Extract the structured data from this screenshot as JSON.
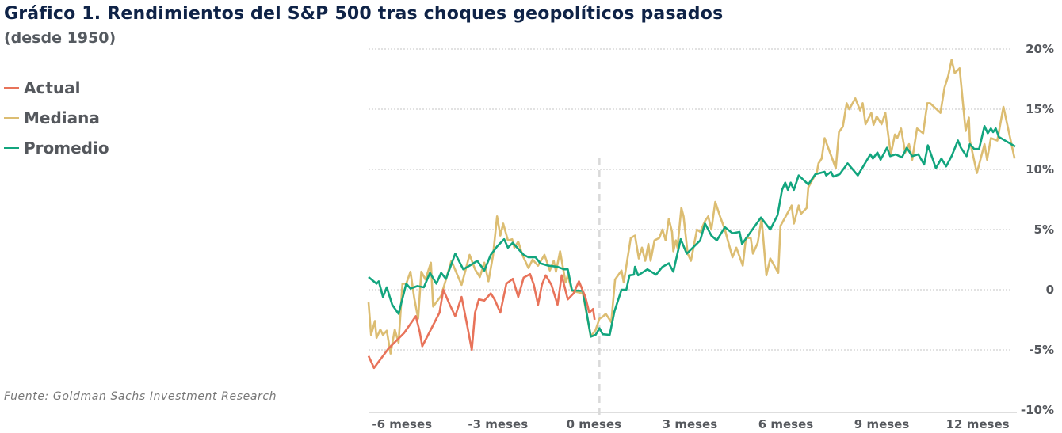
{
  "chart_data": {
    "type": "line",
    "title": "Gráfico 1. Rendimientos del S&P 500 tras choques geopolíticos pasados",
    "subtitle": "(desde 1950)",
    "source": "Fuente: Goldman Sachs Investment Research",
    "xlabel": "",
    "ylabel": "",
    "xlim": [
      -7.17,
      13.1
    ],
    "ylim": [
      -10,
      20
    ],
    "x_ticks": [
      {
        "value": -6,
        "label": "-6 meses"
      },
      {
        "value": -3,
        "label": "-3 meses"
      },
      {
        "value": 0,
        "label": "0 meses"
      },
      {
        "value": 3,
        "label": "3 meses"
      },
      {
        "value": 6,
        "label": "6 meses"
      },
      {
        "value": 9,
        "label": "9 meses"
      },
      {
        "value": 12,
        "label": "12 meses"
      }
    ],
    "y_ticks": [
      {
        "value": 20,
        "label": "20%"
      },
      {
        "value": 15,
        "label": "15%"
      },
      {
        "value": 10,
        "label": "10%"
      },
      {
        "value": 5,
        "label": "5%"
      },
      {
        "value": 0,
        "label": "0"
      },
      {
        "value": -5,
        "label": "-5%"
      },
      {
        "value": -10,
        "label": "-10%"
      }
    ],
    "grid": "horizontal dotted",
    "event_marker_x": 0,
    "legend_position": "top-left",
    "series": [
      {
        "name": "Actual",
        "color": "#e8735a",
        "x": [
          -7.17,
          -7.0,
          -6.55,
          -6.06,
          -5.69,
          -5.57,
          -5.49,
          -5.2,
          -4.95,
          -4.83,
          -4.63,
          -4.46,
          -4.26,
          -4.09,
          -3.94,
          -3.84,
          -3.72,
          -3.55,
          -3.35,
          -3.23,
          -3.05,
          -2.86,
          -2.66,
          -2.49,
          -2.32,
          -2.12,
          -2.0,
          -1.87,
          -1.75,
          -1.63,
          -1.45,
          -1.26,
          -1.13,
          -0.94,
          -0.76,
          -0.59,
          -0.39,
          -0.27,
          -0.15,
          -0.1
        ],
        "y": [
          -5.5,
          -6.5,
          -4.9,
          -3.6,
          -2.2,
          -3.5,
          -4.7,
          -3.2,
          -1.9,
          0,
          -1.25,
          -2.2,
          -0.6,
          -2.9,
          -5.0,
          -1.9,
          -0.8,
          -0.9,
          -0.3,
          -0.8,
          -1.9,
          0.5,
          0.9,
          -0.6,
          1.0,
          1.3,
          0.4,
          -1.25,
          0.4,
          1.2,
          0.4,
          -1.25,
          1.2,
          -0.8,
          -0.3,
          0.7,
          -0.6,
          -1.9,
          -1.6,
          -2.5
        ]
      },
      {
        "name": "Mediana",
        "color": "#dcbd72",
        "x": [
          -7.17,
          -7.09,
          -6.97,
          -6.92,
          -6.8,
          -6.72,
          -6.6,
          -6.48,
          -6.35,
          -6.23,
          -6.11,
          -5.99,
          -5.86,
          -5.74,
          -5.62,
          -5.52,
          -5.39,
          -5.22,
          -5.15,
          -4.9,
          -4.75,
          -4.58,
          -4.26,
          -4.01,
          -3.84,
          -3.69,
          -3.55,
          -3.42,
          -3.28,
          -3.15,
          -3.05,
          -2.96,
          -2.81,
          -2.68,
          -2.61,
          -2.49,
          -2.36,
          -2.17,
          -2.04,
          -1.87,
          -1.67,
          -1.5,
          -1.38,
          -1.31,
          -1.18,
          -1.01,
          -0.94,
          -0.81,
          -0.47,
          -0.22,
          -0.07,
          0.05,
          0.15,
          0.25,
          0.42,
          0.54,
          0.74,
          0.81,
          1.03,
          1.16,
          1.28,
          1.38,
          1.48,
          1.58,
          1.65,
          1.77,
          1.92,
          2.02,
          2.12,
          2.22,
          2.32,
          2.36,
          2.44,
          2.49,
          2.61,
          2.68,
          2.81,
          2.91,
          3.1,
          3.2,
          3.35,
          3.45,
          3.55,
          3.67,
          3.82,
          3.97,
          4.21,
          4.33,
          4.53,
          4.63,
          4.78,
          4.85,
          5.0,
          5.12,
          5.27,
          5.39,
          5.64,
          5.71,
          6.06,
          6.13,
          6.28,
          6.35,
          6.53,
          6.58,
          6.85,
          6.9,
          7.0,
          7.09,
          7.44,
          7.54,
          7.66,
          7.78,
          7.86,
          8.05,
          8.2,
          8.28,
          8.37,
          8.55,
          8.62,
          8.72,
          8.87,
          8.99,
          9.16,
          9.29,
          9.36,
          9.48,
          9.61,
          9.73,
          9.83,
          9.98,
          10.17,
          10.3,
          10.39,
          10.71,
          10.84,
          10.96,
          11.06,
          11.16,
          11.31,
          11.5,
          11.6,
          11.63,
          11.85,
          12.09,
          12.17,
          12.29,
          12.49,
          12.68,
          13.03
        ],
        "y": [
          -1.05,
          -3.75,
          -2.6,
          -4.0,
          -3.3,
          -3.75,
          -3.4,
          -5.3,
          -3.3,
          -4.4,
          0.5,
          0.5,
          1.5,
          -0.7,
          -2.4,
          1.5,
          0.85,
          2.25,
          -1.4,
          -0.5,
          0.85,
          2.4,
          0.4,
          2.9,
          1.7,
          1.05,
          2.25,
          0.7,
          2.8,
          6.1,
          4.5,
          5.5,
          4.1,
          4.2,
          3.5,
          4.0,
          2.9,
          1.8,
          2.5,
          2.0,
          2.9,
          1.6,
          2.4,
          1.5,
          3.2,
          0.6,
          1.2,
          -0.1,
          -0.3,
          -3.9,
          -3.35,
          -2.4,
          -2.25,
          -2.0,
          -2.7,
          0.85,
          1.6,
          0.6,
          4.3,
          4.5,
          2.6,
          3.5,
          2.4,
          3.8,
          2.4,
          4.1,
          4.3,
          5.0,
          4.1,
          5.9,
          4.8,
          3.2,
          4.1,
          3.5,
          6.8,
          6.1,
          3.0,
          2.4,
          5.0,
          4.8,
          5.7,
          6.1,
          5.0,
          7.3,
          6.1,
          5.0,
          2.7,
          3.5,
          2.0,
          4.3,
          4.3,
          3.0,
          3.9,
          5.9,
          1.2,
          2.6,
          1.4,
          5.3,
          7.0,
          5.5,
          7.0,
          6.3,
          6.8,
          8.5,
          9.8,
          10.5,
          10.9,
          12.6,
          10.1,
          13.1,
          13.55,
          15.5,
          15.0,
          15.9,
          14.9,
          15.5,
          13.75,
          14.7,
          13.7,
          14.4,
          13.75,
          14.7,
          11.25,
          12.9,
          12.6,
          13.4,
          11.4,
          12.1,
          10.8,
          13.4,
          13.0,
          15.5,
          15.5,
          14.7,
          16.8,
          17.8,
          19.1,
          18.0,
          18.4,
          13.2,
          14.3,
          12.4,
          9.7,
          12.1,
          10.8,
          12.6,
          12.4,
          15.2,
          10.9
        ]
      },
      {
        "name": "Promedio",
        "color": "#12a57e",
        "x": [
          -7.17,
          -6.92,
          -6.85,
          -6.72,
          -6.6,
          -6.43,
          -6.23,
          -5.99,
          -5.86,
          -5.64,
          -5.44,
          -5.25,
          -5.05,
          -4.9,
          -4.75,
          -4.46,
          -4.21,
          -4.01,
          -3.77,
          -3.55,
          -3.35,
          -3.15,
          -2.93,
          -2.81,
          -2.66,
          -2.32,
          -2.17,
          -1.95,
          -1.8,
          -1.55,
          -1.26,
          -1.06,
          -0.94,
          -0.81,
          -0.47,
          -0.22,
          -0.07,
          0.05,
          0.15,
          0.37,
          0.52,
          0.74,
          0.89,
          0.99,
          1.13,
          1.16,
          1.26,
          1.55,
          1.82,
          2.02,
          2.22,
          2.36,
          2.59,
          2.78,
          3.2,
          3.35,
          3.55,
          3.72,
          3.97,
          4.21,
          4.43,
          4.51,
          5.1,
          5.39,
          5.62,
          5.76,
          5.86,
          5.94,
          6.03,
          6.13,
          6.28,
          6.58,
          6.8,
          7.09,
          7.14,
          7.29,
          7.36,
          7.56,
          7.81,
          8.13,
          8.52,
          8.6,
          8.74,
          8.84,
          9.04,
          9.14,
          9.31,
          9.51,
          9.66,
          9.83,
          10.02,
          10.2,
          10.32,
          10.57,
          10.74,
          10.89,
          11.06,
          11.26,
          11.35,
          11.53,
          11.63,
          11.77,
          11.92,
          12.09,
          12.19,
          12.29,
          12.36,
          12.44,
          12.54,
          13.05
        ],
        "y": [
          1.05,
          0.5,
          0.7,
          -0.6,
          0.2,
          -1.25,
          -2.0,
          0.5,
          0.1,
          0.3,
          0.2,
          1.4,
          0.5,
          1.4,
          0.9,
          3.0,
          1.7,
          2.0,
          2.4,
          1.6,
          2.9,
          3.6,
          4.2,
          3.5,
          3.9,
          2.9,
          2.7,
          2.7,
          2.2,
          2.0,
          1.9,
          1.7,
          1.7,
          -0.05,
          -0.1,
          -3.9,
          -3.75,
          -3.2,
          -3.7,
          -3.75,
          -1.8,
          0,
          0,
          1.2,
          1.25,
          1.9,
          1.2,
          1.7,
          1.25,
          1.9,
          2.2,
          1.5,
          4.2,
          3.0,
          4.1,
          5.5,
          4.5,
          4.1,
          5.2,
          4.7,
          4.8,
          3.8,
          6.0,
          5.0,
          6.2,
          8.3,
          8.9,
          8.3,
          8.9,
          8.3,
          9.5,
          8.75,
          9.6,
          9.8,
          9.5,
          9.8,
          9.4,
          9.6,
          10.5,
          9.5,
          11.25,
          10.9,
          11.4,
          10.8,
          11.8,
          11.1,
          11.25,
          11.0,
          11.8,
          11.1,
          11.25,
          10.4,
          12.0,
          10.1,
          10.9,
          10.25,
          11.1,
          12.4,
          11.8,
          11.1,
          12.1,
          11.7,
          11.7,
          13.6,
          13.0,
          13.4,
          13.1,
          13.4,
          12.7,
          11.9
        ]
      }
    ]
  }
}
